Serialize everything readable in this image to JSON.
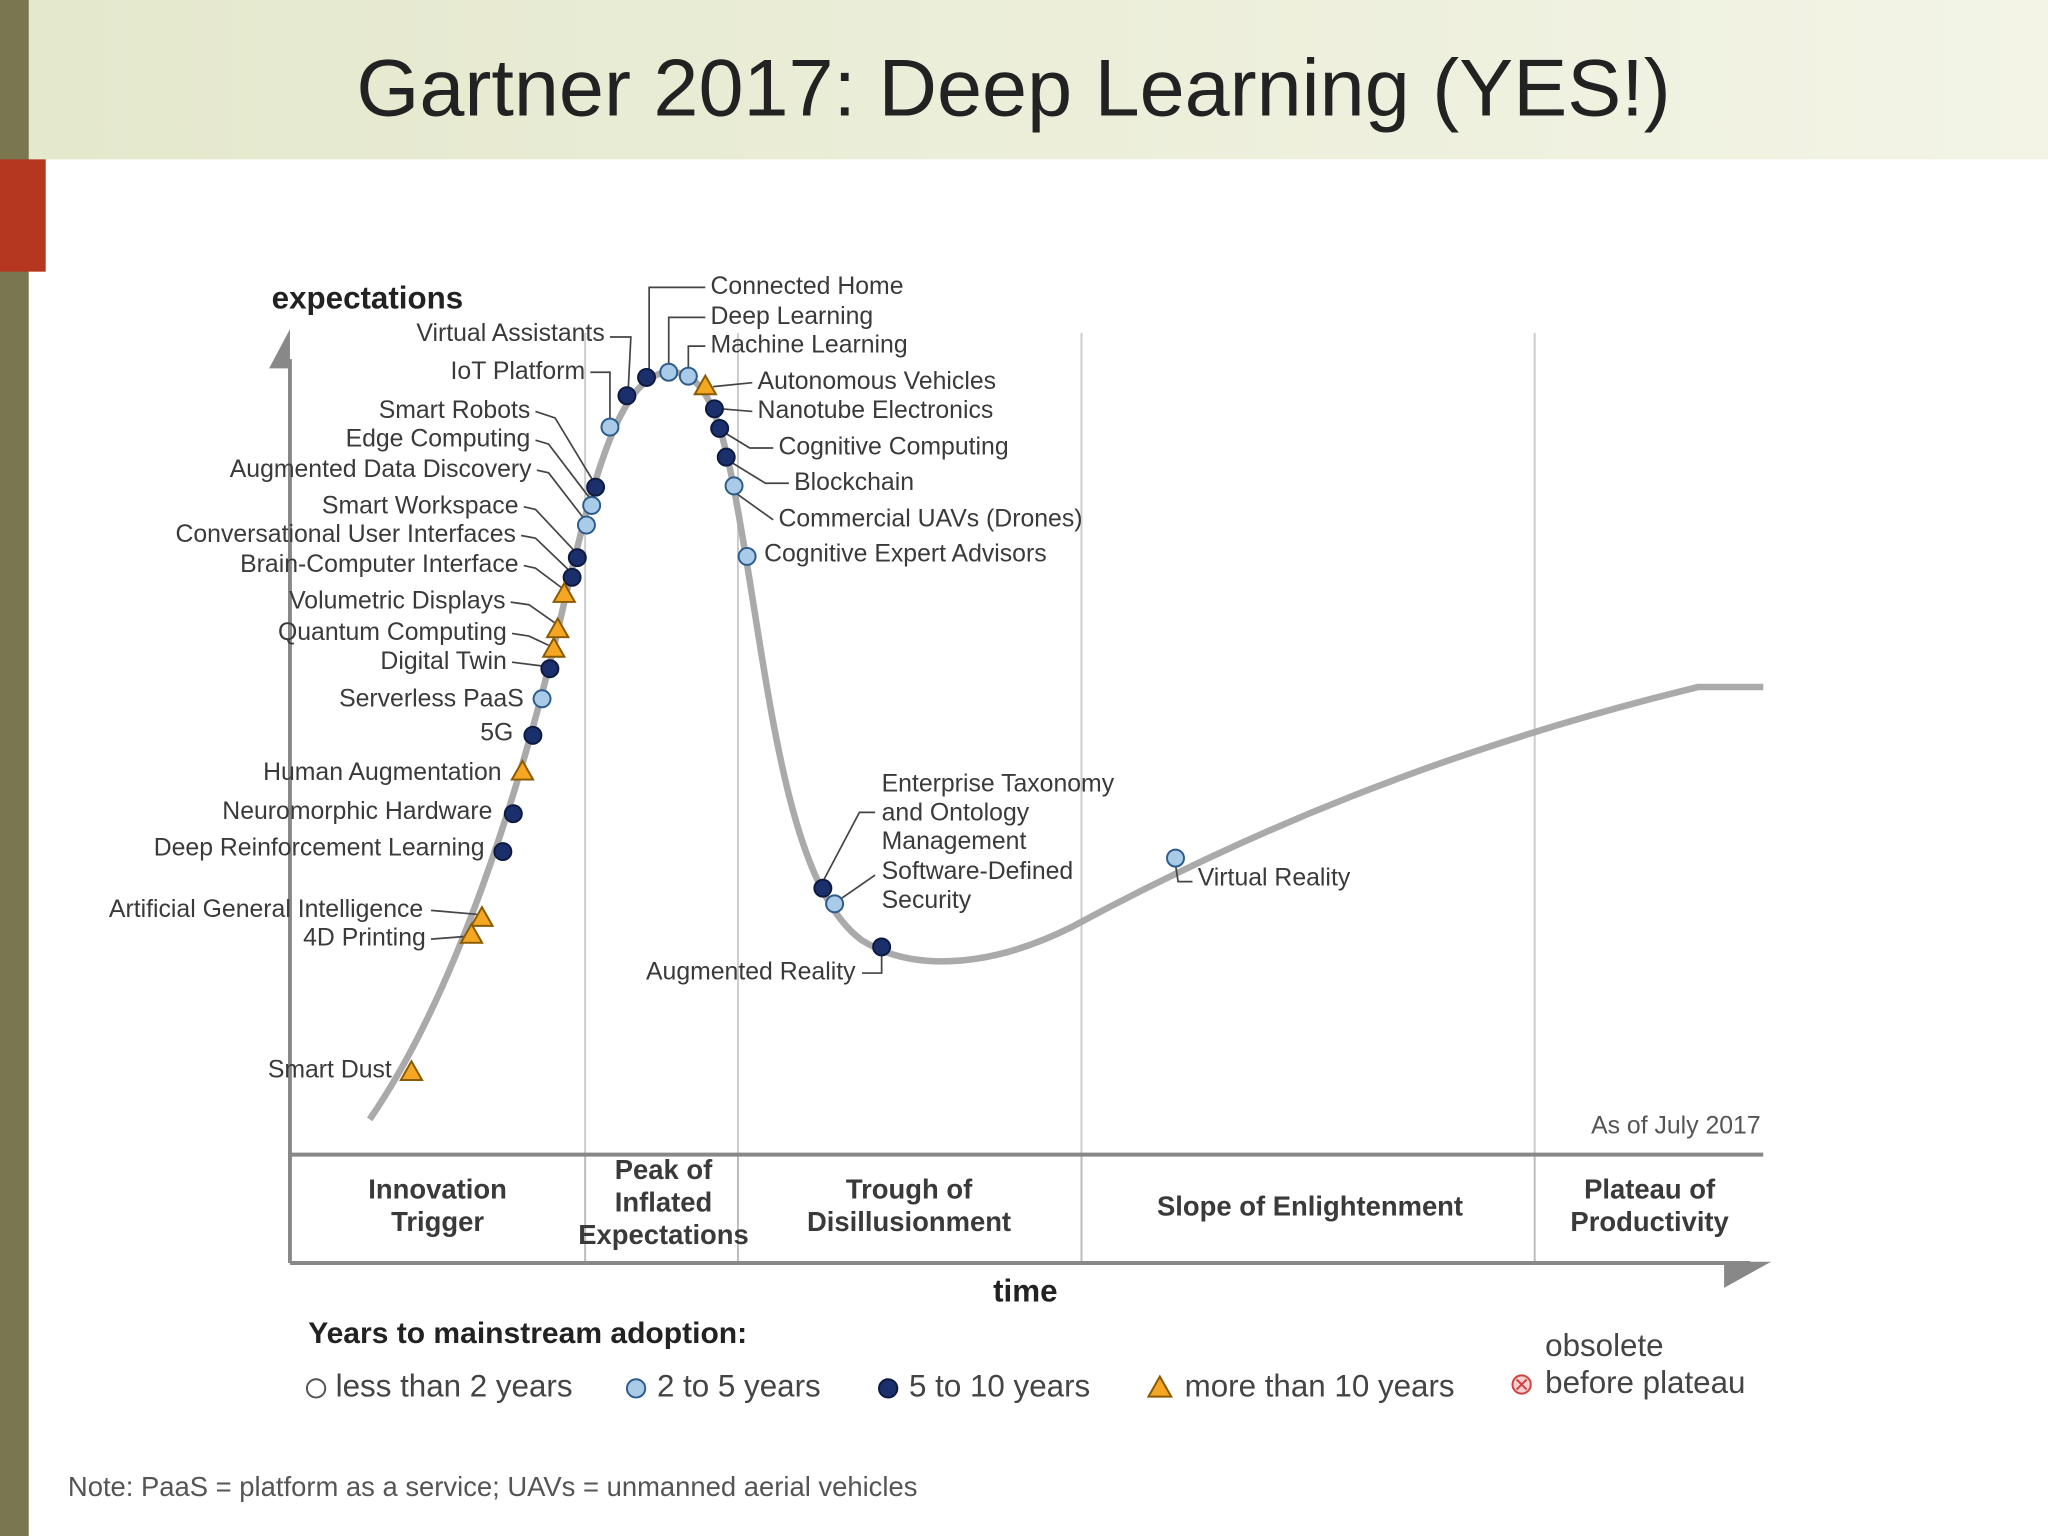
{
  "title": "Gartner 2017: Deep Learning (YES!)",
  "diagram": {
    "y_axis_label": "expectations",
    "x_axis_label": "time",
    "as_of": "As of July 2017",
    "phases": [
      [
        "Innovation",
        "Trigger"
      ],
      [
        "Peak of",
        "Inflated",
        "Expectations"
      ],
      [
        "Trough of",
        "Disillusionment"
      ],
      [
        "Slope of Enlightenment"
      ],
      [
        "Plateau of",
        "Productivity"
      ]
    ],
    "legend": {
      "title": "Years to mainstream adoption:",
      "items": [
        {
          "label": [
            "less than 2 years"
          ],
          "marker": "circle",
          "fill": "#ffffff",
          "stroke": "#555555",
          "technologies": []
        },
        {
          "label": [
            "2 to 5 years"
          ],
          "marker": "circle",
          "fill": "#a9cbe8",
          "stroke": "#2d5b8a",
          "technologies": [
            {
              "label": "Deep Learning"
            },
            {
              "label": "Machine Learning"
            },
            {
              "label": "Commercial UAVs (Drones)"
            },
            {
              "label": "Cognitive Expert Advisors"
            },
            {
              "label": "IoT Platform"
            },
            {
              "label": "Edge Computing"
            },
            {
              "label": "Augmented Data Discovery"
            },
            {
              "label": "Serverless PaaS"
            },
            {
              "label": [
                "Software-Defined",
                "Security"
              ]
            },
            {
              "label": "Virtual Reality"
            }
          ]
        },
        {
          "label": [
            "5 to 10 years"
          ],
          "marker": "circle",
          "fill": "#1a2f6b",
          "stroke": "#0d1a40",
          "technologies": [
            {
              "label": "Connected Home"
            },
            {
              "label": "Nanotube Electronics"
            },
            {
              "label": "Cognitive Computing"
            },
            {
              "label": "Blockchain"
            },
            {
              "label": "Virtual Assistants"
            },
            {
              "label": "Smart Robots"
            },
            {
              "label": "Smart Workspace"
            },
            {
              "label": "Conversational User Interfaces"
            },
            {
              "label": "Digital Twin"
            },
            {
              "label": "5G"
            },
            {
              "label": "Neuromorphic Hardware"
            },
            {
              "label": "Deep Reinforcement Learning"
            },
            {
              "label": [
                "Enterprise Taxonomy",
                "and Ontology",
                "Management"
              ]
            },
            {
              "label": "Augmented Reality"
            }
          ]
        },
        {
          "label": [
            "more than 10 years"
          ],
          "marker": "triangle",
          "fill": "#f5a623",
          "stroke": "#8a5a00",
          "technologies": [
            {
              "label": "Autonomous Vehicles"
            },
            {
              "label": "Brain-Computer Interface"
            },
            {
              "label": "Volumetric Displays"
            },
            {
              "label": "Quantum Computing"
            },
            {
              "label": "Human Augmentation"
            },
            {
              "label": "Artificial General Intelligence"
            },
            {
              "label": "4D Printing"
            },
            {
              "label": "Smart Dust"
            }
          ]
        },
        {
          "label": [
            "obsolete",
            "before plateau"
          ],
          "marker": "circle-x",
          "fill": "#f6d0d0",
          "stroke": "#d04040",
          "technologies": []
        }
      ]
    }
  },
  "note": "Note: PaaS = platform as a service; UAVs = unmanned aerial vehicles"
}
